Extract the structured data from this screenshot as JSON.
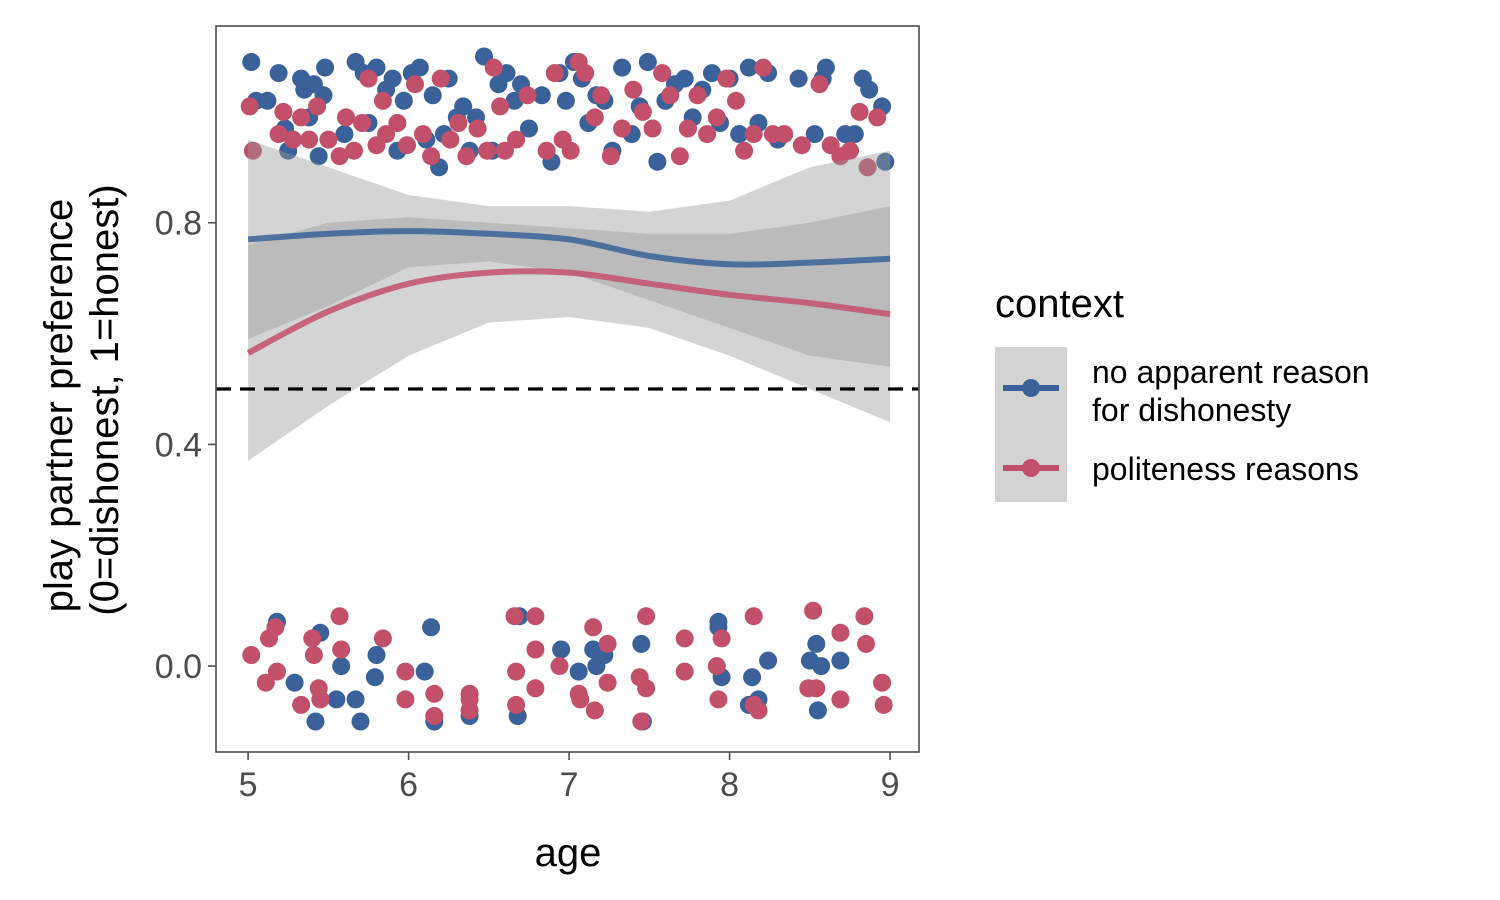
{
  "chart_data": {
    "type": "scatter",
    "xlabel": "age",
    "ylabel_lines": [
      "play partner preference",
      "(0=dishonest, 1=honest)"
    ],
    "xlim": [
      4.8,
      9.18
    ],
    "ylim": [
      -0.155,
      1.155
    ],
    "x_ticks": [
      5,
      6,
      7,
      8,
      9
    ],
    "x_tick_labels": [
      "5",
      "6",
      "7",
      "8",
      "9"
    ],
    "y_ticks": [
      0.0,
      0.4,
      0.8
    ],
    "y_tick_labels": [
      "0.0",
      "0.4",
      "0.8"
    ],
    "reference_line": {
      "y": 0.5,
      "style": "dashed",
      "color": "#000000"
    },
    "grid": false,
    "legend": {
      "title": "context",
      "placement": "right",
      "entries": [
        {
          "series_index": 0,
          "lines": [
            "no apparent reason",
            "for dishonesty"
          ]
        },
        {
          "series_index": 1,
          "lines": [
            "politeness reasons"
          ]
        }
      ]
    },
    "series": [
      {
        "name": "no apparent reason for dishonesty",
        "color": "#3a6199",
        "smooth": {
          "x": [
            5.0,
            5.5,
            6.0,
            6.5,
            7.0,
            7.5,
            8.0,
            8.5,
            9.0
          ],
          "y": [
            0.77,
            0.78,
            0.785,
            0.78,
            0.77,
            0.74,
            0.725,
            0.728,
            0.735
          ],
          "lower": [
            0.59,
            0.65,
            0.72,
            0.73,
            0.71,
            0.66,
            0.61,
            0.56,
            0.54
          ],
          "upper": [
            0.95,
            0.9,
            0.85,
            0.83,
            0.83,
            0.82,
            0.84,
            0.9,
            0.93
          ]
        },
        "points": [
          [
            5.02,
            1.09
          ],
          [
            5.05,
            1.02
          ],
          [
            5.12,
            1.02
          ],
          [
            5.19,
            1.07
          ],
          [
            5.23,
            0.97
          ],
          [
            5.25,
            0.93
          ],
          [
            5.33,
            1.06
          ],
          [
            5.35,
            1.04
          ],
          [
            5.38,
            0.99
          ],
          [
            5.41,
            1.05
          ],
          [
            5.44,
            0.92
          ],
          [
            5.47,
            1.03
          ],
          [
            5.48,
            1.08
          ],
          [
            5.6,
            0.96
          ],
          [
            5.67,
            1.09
          ],
          [
            5.72,
            1.07
          ],
          [
            5.75,
            0.98
          ],
          [
            5.8,
            1.08
          ],
          [
            5.86,
            1.04
          ],
          [
            5.9,
            1.06
          ],
          [
            5.93,
            0.93
          ],
          [
            5.97,
            1.02
          ],
          [
            6.02,
            1.07
          ],
          [
            6.07,
            1.08
          ],
          [
            6.11,
            0.95
          ],
          [
            6.15,
            1.03
          ],
          [
            6.19,
            0.9
          ],
          [
            6.22,
            0.96
          ],
          [
            6.25,
            1.06
          ],
          [
            6.3,
            0.99
          ],
          [
            6.34,
            1.01
          ],
          [
            6.38,
            0.93
          ],
          [
            6.42,
            0.99
          ],
          [
            6.47,
            1.1
          ],
          [
            6.52,
            0.93
          ],
          [
            6.56,
            1.05
          ],
          [
            6.61,
            1.07
          ],
          [
            6.66,
            1.02
          ],
          [
            6.7,
            1.05
          ],
          [
            6.75,
            0.97
          ],
          [
            6.83,
            1.03
          ],
          [
            6.89,
            0.91
          ],
          [
            6.94,
            1.07
          ],
          [
            6.98,
            1.02
          ],
          [
            7.03,
            1.09
          ],
          [
            7.08,
            1.06
          ],
          [
            7.12,
            0.98
          ],
          [
            7.17,
            1.03
          ],
          [
            7.22,
            1.02
          ],
          [
            7.27,
            0.93
          ],
          [
            7.33,
            1.08
          ],
          [
            7.39,
            0.96
          ],
          [
            7.44,
            1.01
          ],
          [
            7.49,
            1.09
          ],
          [
            7.55,
            0.91
          ],
          [
            7.6,
            1.02
          ],
          [
            7.66,
            1.05
          ],
          [
            7.72,
            1.06
          ],
          [
            7.77,
            0.99
          ],
          [
            7.83,
            1.04
          ],
          [
            7.89,
            1.07
          ],
          [
            7.94,
            0.98
          ],
          [
            8.0,
            1.06
          ],
          [
            8.06,
            0.96
          ],
          [
            8.12,
            1.08
          ],
          [
            8.18,
            0.98
          ],
          [
            8.24,
            1.07
          ],
          [
            8.3,
            0.95
          ],
          [
            8.43,
            1.06
          ],
          [
            8.53,
            0.96
          ],
          [
            8.58,
            1.06
          ],
          [
            8.6,
            1.08
          ],
          [
            8.72,
            0.96
          ],
          [
            8.78,
            0.96
          ],
          [
            8.83,
            1.06
          ],
          [
            8.87,
            1.04
          ],
          [
            8.95,
            1.01
          ],
          [
            8.97,
            0.91
          ],
          [
            5.18,
            0.08
          ],
          [
            5.29,
            -0.03
          ],
          [
            5.42,
            -0.1
          ],
          [
            5.45,
            0.06
          ],
          [
            5.55,
            -0.06
          ],
          [
            5.58,
            0.0
          ],
          [
            5.67,
            -0.06
          ],
          [
            5.7,
            -0.1
          ],
          [
            5.79,
            -0.02
          ],
          [
            5.8,
            0.02
          ],
          [
            6.1,
            -0.01
          ],
          [
            6.14,
            0.07
          ],
          [
            6.16,
            -0.1
          ],
          [
            6.38,
            -0.09
          ],
          [
            6.68,
            -0.09
          ],
          [
            6.69,
            0.09
          ],
          [
            6.95,
            0.03
          ],
          [
            7.06,
            -0.01
          ],
          [
            7.15,
            0.03
          ],
          [
            7.17,
            0.0
          ],
          [
            7.22,
            0.02
          ],
          [
            7.45,
            0.04
          ],
          [
            7.46,
            -0.1
          ],
          [
            7.93,
            0.08
          ],
          [
            7.93,
            0.07
          ],
          [
            7.95,
            -0.02
          ],
          [
            8.12,
            -0.07
          ],
          [
            8.14,
            -0.02
          ],
          [
            8.18,
            -0.06
          ],
          [
            8.24,
            0.01
          ],
          [
            8.5,
            0.01
          ],
          [
            8.54,
            0.04
          ],
          [
            8.55,
            -0.08
          ],
          [
            8.57,
            0.0
          ],
          [
            8.69,
            0.01
          ]
        ]
      },
      {
        "name": "politeness reasons",
        "color": "#c2506a",
        "smooth": {
          "x": [
            5.0,
            5.5,
            6.0,
            6.5,
            7.0,
            7.5,
            8.0,
            8.5,
            9.0
          ],
          "y": [
            0.565,
            0.64,
            0.69,
            0.71,
            0.71,
            0.69,
            0.67,
            0.655,
            0.635
          ],
          "lower": [
            0.37,
            0.47,
            0.56,
            0.62,
            0.63,
            0.61,
            0.56,
            0.5,
            0.44
          ],
          "upper": [
            0.76,
            0.8,
            0.81,
            0.8,
            0.79,
            0.78,
            0.78,
            0.8,
            0.83
          ]
        },
        "points": [
          [
            5.01,
            1.01
          ],
          [
            5.03,
            0.93
          ],
          [
            5.19,
            0.96
          ],
          [
            5.22,
            1.0
          ],
          [
            5.28,
            0.95
          ],
          [
            5.33,
            0.99
          ],
          [
            5.38,
            0.95
          ],
          [
            5.43,
            1.01
          ],
          [
            5.5,
            0.95
          ],
          [
            5.57,
            0.92
          ],
          [
            5.61,
            0.99
          ],
          [
            5.66,
            0.93
          ],
          [
            5.71,
            0.98
          ],
          [
            5.75,
            1.06
          ],
          [
            5.8,
            0.94
          ],
          [
            5.84,
            1.02
          ],
          [
            5.86,
            0.96
          ],
          [
            5.93,
            0.98
          ],
          [
            5.99,
            0.94
          ],
          [
            6.04,
            1.05
          ],
          [
            6.09,
            0.96
          ],
          [
            6.14,
            0.92
          ],
          [
            6.2,
            1.06
          ],
          [
            6.26,
            0.95
          ],
          [
            6.31,
            0.98
          ],
          [
            6.36,
            0.92
          ],
          [
            6.43,
            0.97
          ],
          [
            6.49,
            0.93
          ],
          [
            6.53,
            1.08
          ],
          [
            6.57,
            1.01
          ],
          [
            6.6,
            0.93
          ],
          [
            6.67,
            0.95
          ],
          [
            6.74,
            1.03
          ],
          [
            6.86,
            0.93
          ],
          [
            6.91,
            1.07
          ],
          [
            6.96,
            0.95
          ],
          [
            7.01,
            0.93
          ],
          [
            7.06,
            1.09
          ],
          [
            7.1,
            1.07
          ],
          [
            7.16,
            0.99
          ],
          [
            7.2,
            1.03
          ],
          [
            7.26,
            0.92
          ],
          [
            7.33,
            0.97
          ],
          [
            7.4,
            1.04
          ],
          [
            7.46,
            1.0
          ],
          [
            7.52,
            0.97
          ],
          [
            7.58,
            1.07
          ],
          [
            7.63,
            1.03
          ],
          [
            7.69,
            0.92
          ],
          [
            7.74,
            0.97
          ],
          [
            7.8,
            1.03
          ],
          [
            7.86,
            0.96
          ],
          [
            7.92,
            0.99
          ],
          [
            7.98,
            1.06
          ],
          [
            8.04,
            1.02
          ],
          [
            8.09,
            0.93
          ],
          [
            8.15,
            0.96
          ],
          [
            8.21,
            1.08
          ],
          [
            8.27,
            0.96
          ],
          [
            8.34,
            0.96
          ],
          [
            8.45,
            0.94
          ],
          [
            8.56,
            1.05
          ],
          [
            8.63,
            0.94
          ],
          [
            8.69,
            0.92
          ],
          [
            8.75,
            0.93
          ],
          [
            8.81,
            1.0
          ],
          [
            8.86,
            0.9
          ],
          [
            8.92,
            0.99
          ],
          [
            5.02,
            0.02
          ],
          [
            5.11,
            -0.03
          ],
          [
            5.13,
            0.05
          ],
          [
            5.17,
            0.07
          ],
          [
            5.18,
            -0.01
          ],
          [
            5.33,
            -0.07
          ],
          [
            5.4,
            0.05
          ],
          [
            5.41,
            0.02
          ],
          [
            5.44,
            -0.04
          ],
          [
            5.45,
            -0.06
          ],
          [
            5.57,
            0.09
          ],
          [
            5.58,
            0.03
          ],
          [
            5.84,
            0.05
          ],
          [
            5.98,
            -0.01
          ],
          [
            5.98,
            -0.06
          ],
          [
            6.16,
            -0.05
          ],
          [
            6.16,
            -0.09
          ],
          [
            6.38,
            -0.05
          ],
          [
            6.38,
            -0.06
          ],
          [
            6.38,
            -0.08
          ],
          [
            6.66,
            0.09
          ],
          [
            6.67,
            -0.01
          ],
          [
            6.67,
            -0.07
          ],
          [
            6.79,
            0.09
          ],
          [
            6.79,
            0.03
          ],
          [
            6.79,
            -0.04
          ],
          [
            6.94,
            0.0
          ],
          [
            7.06,
            -0.05
          ],
          [
            7.07,
            -0.06
          ],
          [
            7.15,
            0.07
          ],
          [
            7.16,
            -0.08
          ],
          [
            7.24,
            0.04
          ],
          [
            7.24,
            -0.03
          ],
          [
            7.44,
            -0.02
          ],
          [
            7.45,
            -0.1
          ],
          [
            7.48,
            0.09
          ],
          [
            7.48,
            -0.04
          ],
          [
            7.72,
            0.05
          ],
          [
            7.72,
            -0.01
          ],
          [
            7.92,
            0.0
          ],
          [
            7.93,
            -0.06
          ],
          [
            7.95,
            0.05
          ],
          [
            8.15,
            0.09
          ],
          [
            8.15,
            -0.07
          ],
          [
            8.18,
            -0.08
          ],
          [
            8.49,
            -0.04
          ],
          [
            8.52,
            0.1
          ],
          [
            8.54,
            -0.04
          ],
          [
            8.69,
            0.06
          ],
          [
            8.69,
            -0.06
          ],
          [
            8.84,
            0.09
          ],
          [
            8.85,
            0.04
          ],
          [
            8.95,
            -0.03
          ],
          [
            8.96,
            -0.07
          ]
        ]
      }
    ]
  }
}
